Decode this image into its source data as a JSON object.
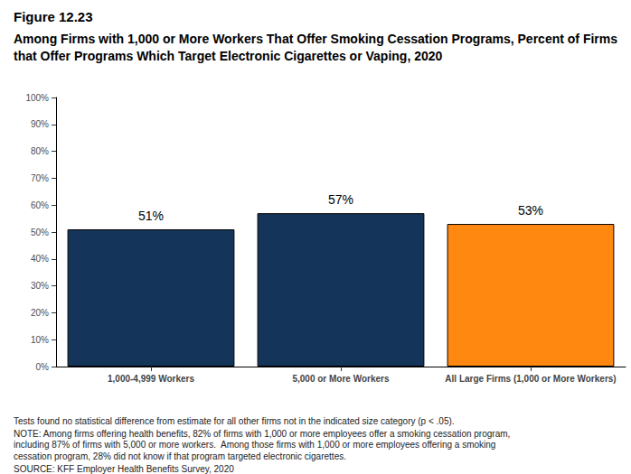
{
  "chart_data": {
    "type": "bar",
    "title": "Figure 12.23",
    "subtitle": "Among Firms with 1,000 or More Workers That Offer Smoking Cessation Programs, Percent of Firms that Offer Programs Which Target Electronic Cigarettes or Vaping, 2020",
    "categories": [
      "1,000-4,999 Workers",
      "5,000 or More Workers",
      "All Large Firms (1,000 or More Workers)"
    ],
    "values": [
      51,
      57,
      53
    ],
    "value_labels": [
      "51%",
      "57%",
      "53%"
    ],
    "colors": [
      "#14345a",
      "#14345a",
      "#ff8811"
    ],
    "ylim": [
      0,
      100
    ],
    "yticks": [
      {
        "value": 0,
        "label": "0%"
      },
      {
        "value": 10,
        "label": "10%"
      },
      {
        "value": 20,
        "label": "20%"
      },
      {
        "value": 30,
        "label": "30%"
      },
      {
        "value": 40,
        "label": "40%"
      },
      {
        "value": 50,
        "label": "50%"
      },
      {
        "value": 60,
        "label": "60%"
      },
      {
        "value": 70,
        "label": "70%"
      },
      {
        "value": 80,
        "label": "80%"
      },
      {
        "value": 90,
        "label": "90%"
      },
      {
        "value": 100,
        "label": "100%"
      }
    ],
    "grid": false,
    "data_labels": true,
    "notes": [
      "Tests found no statistical difference from estimate for all other firms not in the indicated size category (p < .05).",
      "NOTE: Among firms offering health benefits, 82% of firms with 1,000 or more employees offer a smoking cessation program, including 87% of firms with 5,000 or more workers.  Among those firms with 1,000 or more employees offering a smoking cessation program, 28% did not know if that program targeted electronic cigarettes.",
      "SOURCE: KFF Employer Health Benefits Survey, 2020"
    ]
  }
}
